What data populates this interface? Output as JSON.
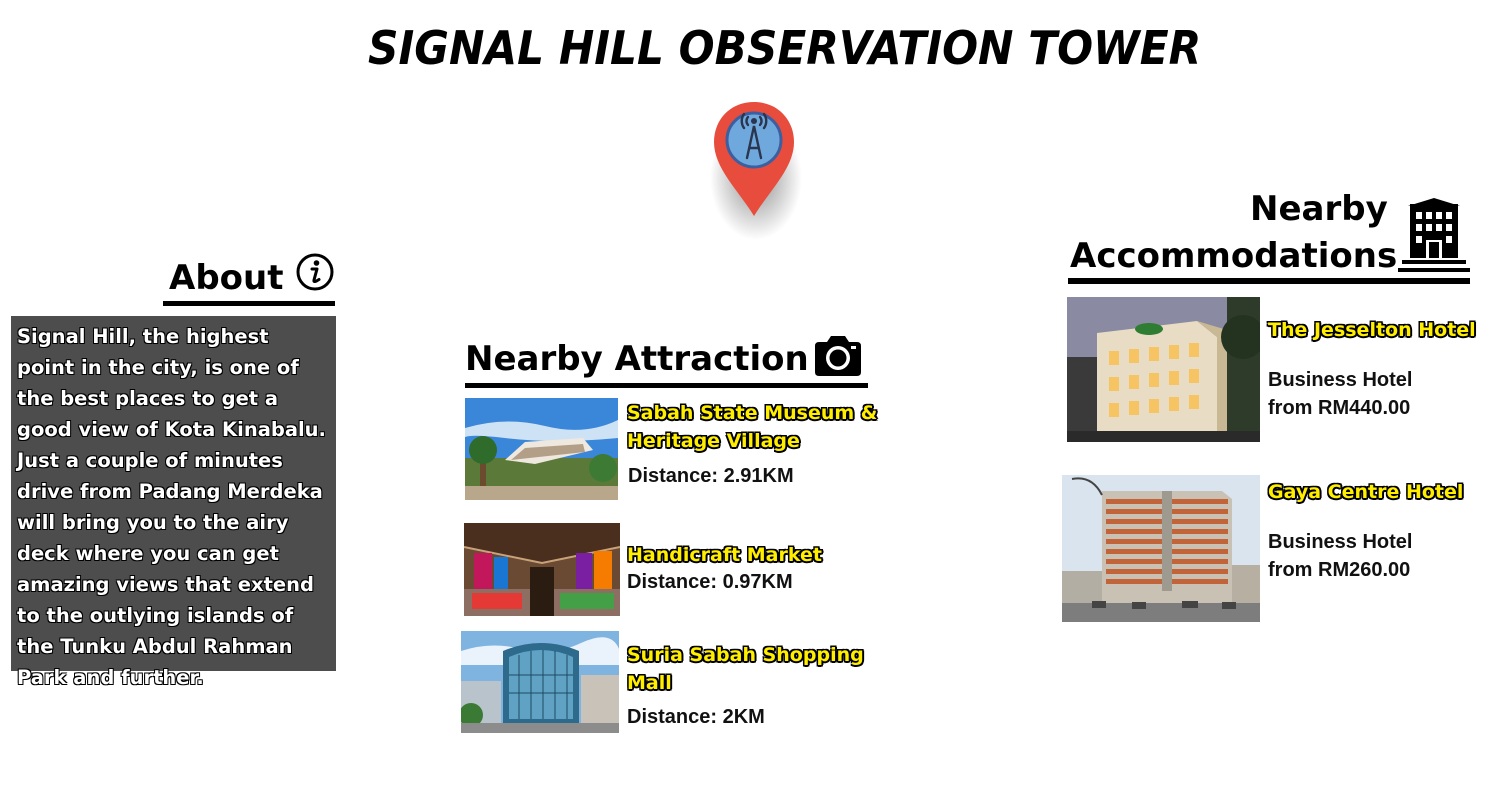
{
  "page": {
    "title": "SIGNAL HILL OBSERVATION TOWER",
    "pin_icon": "location-pin-tower-icon",
    "colors": {
      "pin": "#e74c3c",
      "pin_inner": "#6fa8dc",
      "about_bg": "#4d4d4d",
      "name_highlight": "#ffee00"
    }
  },
  "about": {
    "heading": "About",
    "icon": "info-icon",
    "text": "Signal Hill, the highest point in the city, is one of the best places to get a good view of Kota Kinabalu. Just a couple of minutes drive from Padang Merdeka will bring you to the airy deck where you can get amazing views that extend to the outlying islands of the Tunku Abdul Rahman Park and further."
  },
  "attractions": {
    "heading": "Nearby Attraction",
    "icon": "camera-icon",
    "items": [
      {
        "name": "Sabah State Museum & Heritage Village",
        "distance": "Distance: 2.91KM"
      },
      {
        "name": "Handicraft Market",
        "distance": "Distance: 0.97KM"
      },
      {
        "name": "Suria Sabah Shopping Mall",
        "distance": "Distance: 2KM"
      }
    ]
  },
  "accommodations": {
    "heading_line1": "Nearby",
    "heading_line2": "Accommodations",
    "icon": "hotel-building-icon",
    "items": [
      {
        "name": "The Jesselton Hotel",
        "type": "Business Hotel",
        "price": "from RM440.00"
      },
      {
        "name": "Gaya Centre Hotel",
        "type": "Business Hotel",
        "price": "from RM260.00"
      }
    ]
  }
}
